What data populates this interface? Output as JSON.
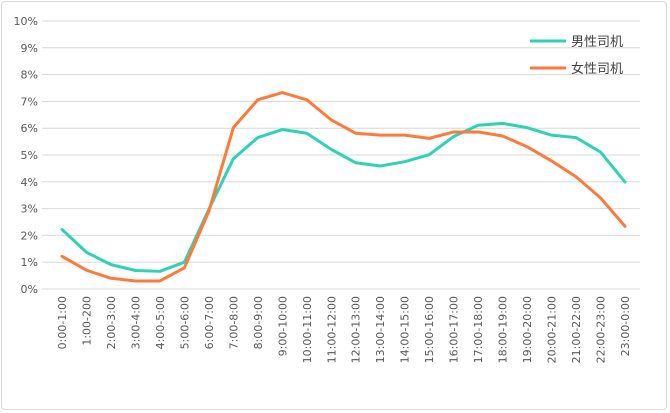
{
  "chart_data": {
    "type": "line",
    "title": "",
    "xlabel": "",
    "ylabel": "",
    "ylim": [
      0,
      10
    ],
    "y_tick_format": "percent",
    "yticks": [
      "0%",
      "1%",
      "2%",
      "3%",
      "4%",
      "5%",
      "6%",
      "7%",
      "8%",
      "9%",
      "10%"
    ],
    "grid": true,
    "legend_position": "top-right",
    "categories": [
      "0:00-1:00",
      "1:00-200",
      "2:00-3:00",
      "3:00-4:00",
      "4:00-5:00",
      "5:00-6:00",
      "6:00-7:00",
      "7:00-8:00",
      "8:00-9:00",
      "9:00-10:00",
      "10:00-11:00",
      "11:00-12:00",
      "12:00-13:00",
      "13:00-14:00",
      "14:00-15:00",
      "15:00-16:00",
      "16:00-17:00",
      "17:00-18:00",
      "18:00-19:00",
      "19:00-20:00",
      "20:00-21:00",
      "21:00-22:00",
      "22:00-23:00",
      "23:00-0:00"
    ],
    "series": [
      {
        "name": "男性司机",
        "color": "#2fd3b4",
        "values": [
          2.22,
          1.37,
          0.91,
          0.69,
          0.66,
          1.0,
          2.97,
          4.86,
          5.65,
          5.95,
          5.81,
          5.21,
          4.71,
          4.59,
          4.75,
          5.01,
          5.69,
          6.11,
          6.18,
          6.02,
          5.74,
          5.65,
          5.11,
          3.99
        ]
      },
      {
        "name": "女性司机",
        "color": "#ff7a3a",
        "values": [
          1.22,
          0.7,
          0.4,
          0.3,
          0.3,
          0.79,
          2.9,
          6.02,
          7.06,
          7.33,
          7.06,
          6.31,
          5.81,
          5.74,
          5.74,
          5.62,
          5.86,
          5.86,
          5.71,
          5.31,
          4.78,
          4.19,
          3.4,
          2.34
        ]
      }
    ]
  }
}
